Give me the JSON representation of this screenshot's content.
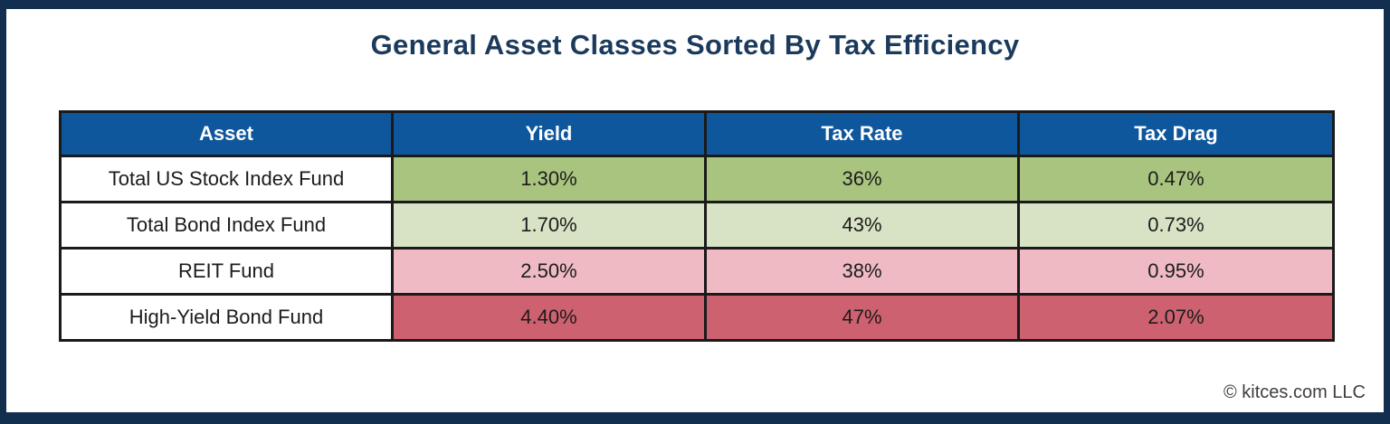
{
  "title": "General Asset Classes Sorted By Tax Efficiency",
  "footer": {
    "credit": "© kitces.com LLC"
  },
  "colors": {
    "frame_navy": "#132F4F",
    "header_blue": "#0E579C",
    "title_navy": "#1B3A5C",
    "cell_border_black": "#1A1A1A",
    "row_green_strong": "#A9C47F",
    "row_green_light": "#D8E2C4",
    "row_red_light": "#EFBAC3",
    "row_red_strong": "#CD616F",
    "footer_gray": "#3E3E3E"
  },
  "table": {
    "headers": [
      "Asset",
      "Yield",
      "Tax Rate",
      "Tax Drag"
    ],
    "rows": [
      {
        "asset": "Total US Stock Index Fund",
        "yield": "1.30%",
        "tax_rate": "36%",
        "tax_drag": "0.47%",
        "color": "#A9C47F"
      },
      {
        "asset": "Total Bond Index Fund",
        "yield": "1.70%",
        "tax_rate": "43%",
        "tax_drag": "0.73%",
        "color": "#D8E2C4"
      },
      {
        "asset": "REIT Fund",
        "yield": "2.50%",
        "tax_rate": "38%",
        "tax_drag": "0.95%",
        "color": "#EFBAC3"
      },
      {
        "asset": "High-Yield Bond Fund",
        "yield": "4.40%",
        "tax_rate": "47%",
        "tax_drag": "2.07%",
        "color": "#CD616F"
      }
    ]
  },
  "chart_data": {
    "type": "table",
    "title": "General Asset Classes Sorted By Tax Efficiency",
    "columns": [
      "Asset",
      "Yield",
      "Tax Rate",
      "Tax Drag"
    ],
    "rows": [
      [
        "Total US Stock Index Fund",
        "1.30%",
        "36%",
        "0.47%"
      ],
      [
        "Total Bond Index Fund",
        "1.70%",
        "43%",
        "0.73%"
      ],
      [
        "REIT Fund",
        "2.50%",
        "38%",
        "0.95%"
      ],
      [
        "High-Yield Bond Fund",
        "4.40%",
        "47%",
        "2.07%"
      ]
    ],
    "numeric_rows": [
      {
        "asset": "Total US Stock Index Fund",
        "yield_pct": 1.3,
        "tax_rate_pct": 36,
        "tax_drag_pct": 0.47
      },
      {
        "asset": "Total Bond Index Fund",
        "yield_pct": 1.7,
        "tax_rate_pct": 43,
        "tax_drag_pct": 0.73
      },
      {
        "asset": "REIT Fund",
        "yield_pct": 2.5,
        "tax_rate_pct": 38,
        "tax_drag_pct": 0.95
      },
      {
        "asset": "High-Yield Bond Fund",
        "yield_pct": 4.4,
        "tax_rate_pct": 47,
        "tax_drag_pct": 2.07
      }
    ],
    "layout_hints": {
      "sorted_by": "tax efficiency (most efficient at top, green; least efficient at bottom, red)",
      "value_cells_color_coded": true
    }
  }
}
